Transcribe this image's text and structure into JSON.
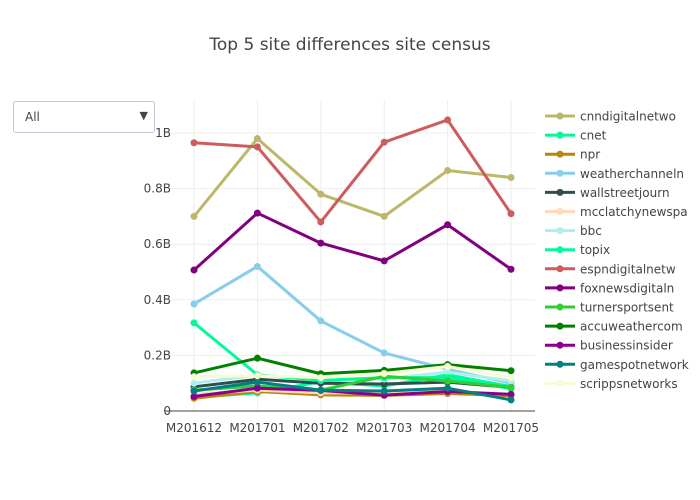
{
  "chart_data": {
    "type": "line",
    "title": "Top 5 site differences site census",
    "xlabel": "",
    "ylabel": "",
    "x": [
      "M201612",
      "M201701",
      "M201702",
      "M201703",
      "M201704",
      "M201705"
    ],
    "ylim": [
      0,
      1.12
    ],
    "yticks": [
      0,
      0.2,
      0.4,
      0.6,
      0.8,
      1.0
    ],
    "ytick_labels": [
      "0",
      "0.2B",
      "0.4B",
      "0.6B",
      "0.8B",
      "1B"
    ],
    "grid": true,
    "legend_position": "right",
    "series": [
      {
        "name": "cnndigitalnetwo",
        "color": "#bdb76b",
        "values": [
          0.7,
          0.98,
          0.78,
          0.7,
          0.865,
          0.84
        ]
      },
      {
        "name": "cnet",
        "color": "#00fa9a",
        "values": [
          0.05,
          0.065,
          0.105,
          0.09,
          0.13,
          0.088
        ]
      },
      {
        "name": "npr",
        "color": "#b8860b",
        "values": [
          0.046,
          0.07,
          0.058,
          0.056,
          0.063,
          0.055
        ]
      },
      {
        "name": "weatherchanneln",
        "color": "#87ceeb",
        "values": [
          0.385,
          0.52,
          0.324,
          0.209,
          0.15,
          0.1
        ]
      },
      {
        "name": "wallstreetjourn",
        "color": "#2f4f4f",
        "values": [
          0.087,
          0.114,
          0.1,
          0.097,
          0.104,
          0.085
        ]
      },
      {
        "name": "mcclatchynewspa",
        "color": "#ffdab9",
        "values": [
          0.06,
          0.075,
          0.065,
          0.065,
          0.07,
          0.06
        ]
      },
      {
        "name": "bbc",
        "color": "#afeeee",
        "values": [
          0.1,
          0.13,
          0.11,
          0.115,
          0.14,
          0.108
        ]
      },
      {
        "name": "topix",
        "color": "#00fa9a",
        "values": [
          0.317,
          0.13,
          0.11,
          0.12,
          0.12,
          0.08
        ]
      },
      {
        "name": "espndigitalnetw",
        "color": "#cd5c5c",
        "values": [
          0.965,
          0.95,
          0.68,
          0.967,
          1.047,
          0.71
        ]
      },
      {
        "name": "foxnewsdigitaln",
        "color": "#800080",
        "values": [
          0.507,
          0.712,
          0.604,
          0.54,
          0.67,
          0.51
        ]
      },
      {
        "name": "turnersportsent",
        "color": "#32cd32",
        "values": [
          0.075,
          0.09,
          0.075,
          0.125,
          0.108,
          0.085
        ]
      },
      {
        "name": "accuweathercom",
        "color": "#008000",
        "values": [
          0.137,
          0.19,
          0.134,
          0.146,
          0.167,
          0.145
        ]
      },
      {
        "name": "businessinsider",
        "color": "#8b008b",
        "values": [
          0.052,
          0.082,
          0.074,
          0.057,
          0.07,
          0.06
        ]
      },
      {
        "name": "gamespotnetwork",
        "color": "#008080",
        "values": [
          0.072,
          0.104,
          0.075,
          0.072,
          0.082,
          0.04
        ]
      },
      {
        "name": "scrippsnetworks",
        "color": "#fafad2",
        "values": [
          0.123,
          0.127,
          0.12,
          0.135,
          0.16,
          0.12
        ]
      }
    ]
  },
  "dropdown": {
    "selected": "All",
    "arrow": "▼"
  }
}
